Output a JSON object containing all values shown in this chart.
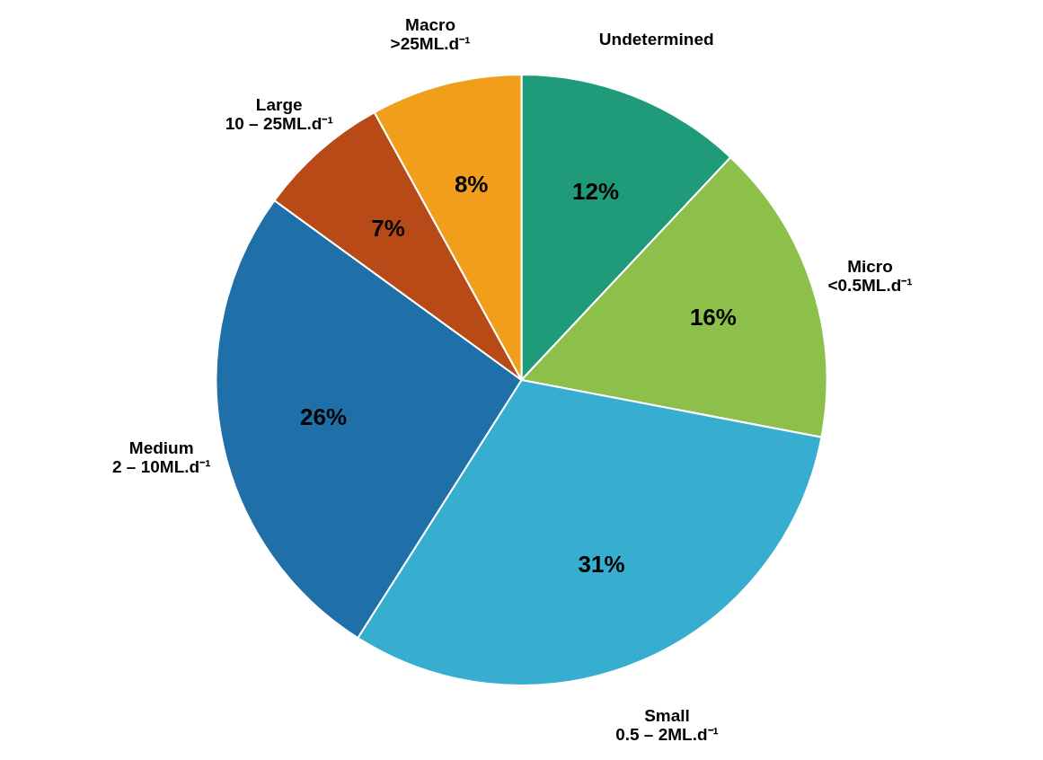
{
  "chart_data": {
    "type": "pie",
    "categories": [
      "Undetermined",
      "Micro\n<0.5ML.d⁻¹",
      "Small\n0.5 – 2ML.d⁻¹",
      "Medium\n2 – 10ML.d⁻¹",
      "Large\n10 – 25ML.d⁻¹",
      "Macro\n>25ML.d⁻¹"
    ],
    "values": [
      12,
      16,
      31,
      26,
      7,
      8
    ],
    "value_labels": [
      "12%",
      "16%",
      "31%",
      "26%",
      "7%",
      "8%"
    ],
    "colors": [
      "#1f9b7a",
      "#8cc04b",
      "#37aecf",
      "#1f6fa8",
      "#b84a17",
      "#f09e1c"
    ]
  }
}
